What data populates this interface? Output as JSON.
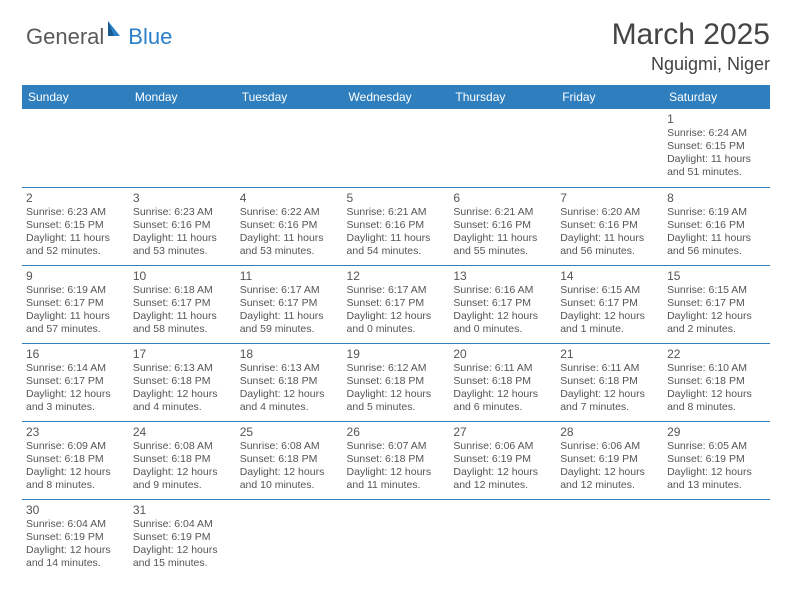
{
  "logo": {
    "text1": "General",
    "text2": "Blue"
  },
  "title": "March 2025",
  "location": "Nguigmi, Niger",
  "header_bg": "#2f7fbf",
  "header_fg": "#ffffff",
  "divider_color": "#2f7fbf",
  "day_headers": [
    "Sunday",
    "Monday",
    "Tuesday",
    "Wednesday",
    "Thursday",
    "Friday",
    "Saturday"
  ],
  "weeks": [
    [
      null,
      null,
      null,
      null,
      null,
      null,
      {
        "n": "1",
        "sr": "Sunrise: 6:24 AM",
        "ss": "Sunset: 6:15 PM",
        "dl": "Daylight: 11 hours and 51 minutes."
      }
    ],
    [
      {
        "n": "2",
        "sr": "Sunrise: 6:23 AM",
        "ss": "Sunset: 6:15 PM",
        "dl": "Daylight: 11 hours and 52 minutes."
      },
      {
        "n": "3",
        "sr": "Sunrise: 6:23 AM",
        "ss": "Sunset: 6:16 PM",
        "dl": "Daylight: 11 hours and 53 minutes."
      },
      {
        "n": "4",
        "sr": "Sunrise: 6:22 AM",
        "ss": "Sunset: 6:16 PM",
        "dl": "Daylight: 11 hours and 53 minutes."
      },
      {
        "n": "5",
        "sr": "Sunrise: 6:21 AM",
        "ss": "Sunset: 6:16 PM",
        "dl": "Daylight: 11 hours and 54 minutes."
      },
      {
        "n": "6",
        "sr": "Sunrise: 6:21 AM",
        "ss": "Sunset: 6:16 PM",
        "dl": "Daylight: 11 hours and 55 minutes."
      },
      {
        "n": "7",
        "sr": "Sunrise: 6:20 AM",
        "ss": "Sunset: 6:16 PM",
        "dl": "Daylight: 11 hours and 56 minutes."
      },
      {
        "n": "8",
        "sr": "Sunrise: 6:19 AM",
        "ss": "Sunset: 6:16 PM",
        "dl": "Daylight: 11 hours and 56 minutes."
      }
    ],
    [
      {
        "n": "9",
        "sr": "Sunrise: 6:19 AM",
        "ss": "Sunset: 6:17 PM",
        "dl": "Daylight: 11 hours and 57 minutes."
      },
      {
        "n": "10",
        "sr": "Sunrise: 6:18 AM",
        "ss": "Sunset: 6:17 PM",
        "dl": "Daylight: 11 hours and 58 minutes."
      },
      {
        "n": "11",
        "sr": "Sunrise: 6:17 AM",
        "ss": "Sunset: 6:17 PM",
        "dl": "Daylight: 11 hours and 59 minutes."
      },
      {
        "n": "12",
        "sr": "Sunrise: 6:17 AM",
        "ss": "Sunset: 6:17 PM",
        "dl": "Daylight: 12 hours and 0 minutes."
      },
      {
        "n": "13",
        "sr": "Sunrise: 6:16 AM",
        "ss": "Sunset: 6:17 PM",
        "dl": "Daylight: 12 hours and 0 minutes."
      },
      {
        "n": "14",
        "sr": "Sunrise: 6:15 AM",
        "ss": "Sunset: 6:17 PM",
        "dl": "Daylight: 12 hours and 1 minute."
      },
      {
        "n": "15",
        "sr": "Sunrise: 6:15 AM",
        "ss": "Sunset: 6:17 PM",
        "dl": "Daylight: 12 hours and 2 minutes."
      }
    ],
    [
      {
        "n": "16",
        "sr": "Sunrise: 6:14 AM",
        "ss": "Sunset: 6:17 PM",
        "dl": "Daylight: 12 hours and 3 minutes."
      },
      {
        "n": "17",
        "sr": "Sunrise: 6:13 AM",
        "ss": "Sunset: 6:18 PM",
        "dl": "Daylight: 12 hours and 4 minutes."
      },
      {
        "n": "18",
        "sr": "Sunrise: 6:13 AM",
        "ss": "Sunset: 6:18 PM",
        "dl": "Daylight: 12 hours and 4 minutes."
      },
      {
        "n": "19",
        "sr": "Sunrise: 6:12 AM",
        "ss": "Sunset: 6:18 PM",
        "dl": "Daylight: 12 hours and 5 minutes."
      },
      {
        "n": "20",
        "sr": "Sunrise: 6:11 AM",
        "ss": "Sunset: 6:18 PM",
        "dl": "Daylight: 12 hours and 6 minutes."
      },
      {
        "n": "21",
        "sr": "Sunrise: 6:11 AM",
        "ss": "Sunset: 6:18 PM",
        "dl": "Daylight: 12 hours and 7 minutes."
      },
      {
        "n": "22",
        "sr": "Sunrise: 6:10 AM",
        "ss": "Sunset: 6:18 PM",
        "dl": "Daylight: 12 hours and 8 minutes."
      }
    ],
    [
      {
        "n": "23",
        "sr": "Sunrise: 6:09 AM",
        "ss": "Sunset: 6:18 PM",
        "dl": "Daylight: 12 hours and 8 minutes."
      },
      {
        "n": "24",
        "sr": "Sunrise: 6:08 AM",
        "ss": "Sunset: 6:18 PM",
        "dl": "Daylight: 12 hours and 9 minutes."
      },
      {
        "n": "25",
        "sr": "Sunrise: 6:08 AM",
        "ss": "Sunset: 6:18 PM",
        "dl": "Daylight: 12 hours and 10 minutes."
      },
      {
        "n": "26",
        "sr": "Sunrise: 6:07 AM",
        "ss": "Sunset: 6:18 PM",
        "dl": "Daylight: 12 hours and 11 minutes."
      },
      {
        "n": "27",
        "sr": "Sunrise: 6:06 AM",
        "ss": "Sunset: 6:19 PM",
        "dl": "Daylight: 12 hours and 12 minutes."
      },
      {
        "n": "28",
        "sr": "Sunrise: 6:06 AM",
        "ss": "Sunset: 6:19 PM",
        "dl": "Daylight: 12 hours and 12 minutes."
      },
      {
        "n": "29",
        "sr": "Sunrise: 6:05 AM",
        "ss": "Sunset: 6:19 PM",
        "dl": "Daylight: 12 hours and 13 minutes."
      }
    ],
    [
      {
        "n": "30",
        "sr": "Sunrise: 6:04 AM",
        "ss": "Sunset: 6:19 PM",
        "dl": "Daylight: 12 hours and 14 minutes."
      },
      {
        "n": "31",
        "sr": "Sunrise: 6:04 AM",
        "ss": "Sunset: 6:19 PM",
        "dl": "Daylight: 12 hours and 15 minutes."
      },
      null,
      null,
      null,
      null,
      null
    ]
  ]
}
